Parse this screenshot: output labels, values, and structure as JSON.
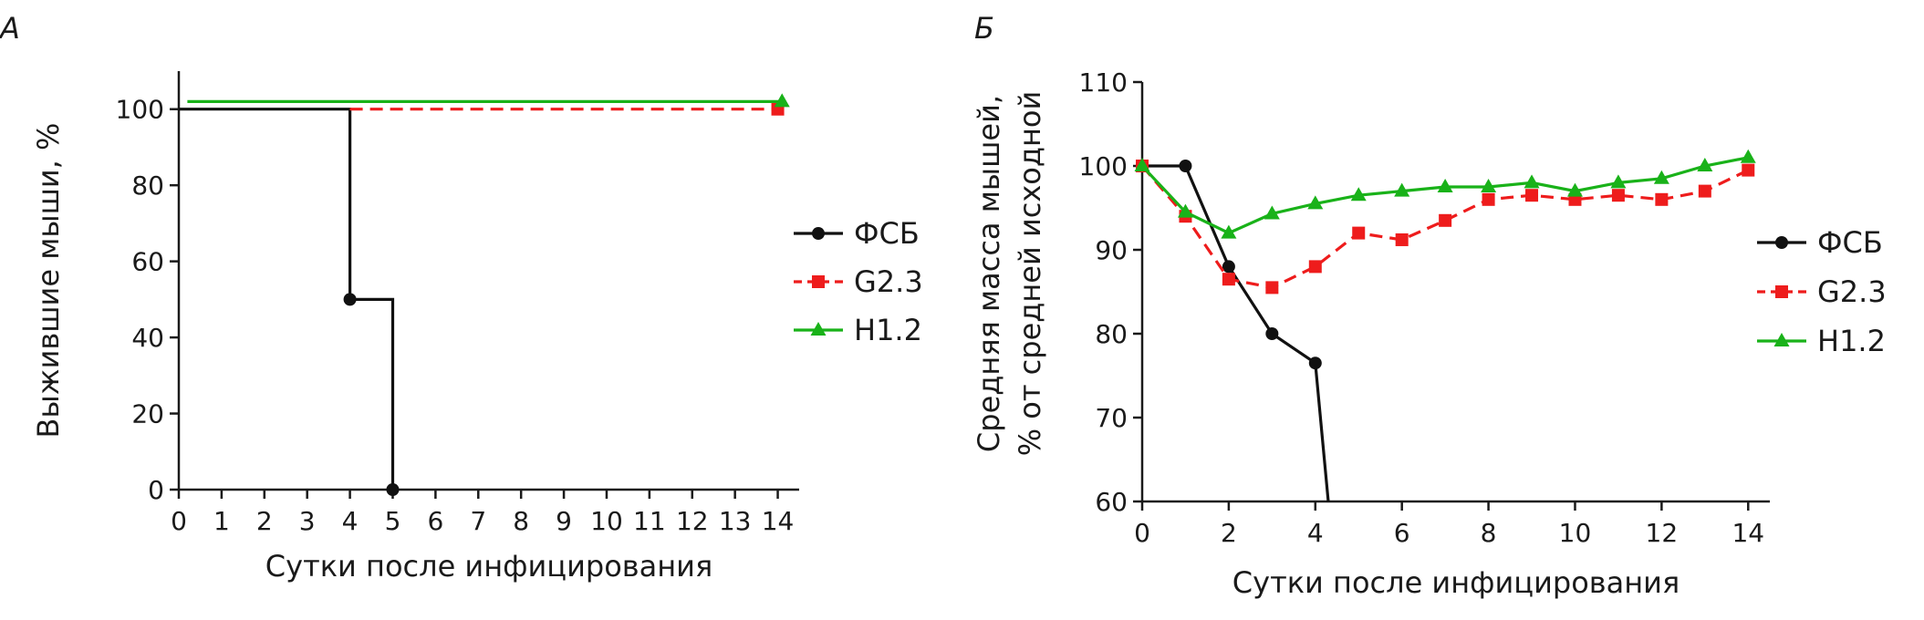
{
  "colors": {
    "pbs": "#111111",
    "g23": "#ee1c1c",
    "h12": "#19b219"
  },
  "chart_data": [
    {
      "panel": "А",
      "type": "line",
      "step": true,
      "title": "",
      "xlabel": "Сутки после инфицирования",
      "ylabel": "Выжившие мыши, %",
      "xlim": [
        0,
        14.5
      ],
      "ylim": [
        0,
        110
      ],
      "xticks": [
        0,
        1,
        2,
        3,
        4,
        5,
        6,
        7,
        8,
        9,
        10,
        11,
        12,
        13,
        14
      ],
      "xtick_labels": [
        "0",
        "1",
        "2",
        "3",
        "4",
        "5",
        "6",
        "7",
        "8",
        "9",
        "10",
        "11",
        "12",
        "13",
        "14"
      ],
      "yticks": [
        0,
        20,
        40,
        60,
        80,
        100
      ],
      "ytick_labels": [
        "0",
        "20",
        "40",
        "60",
        "80",
        "100"
      ],
      "legend_position": "right",
      "series": [
        {
          "name": "ФСБ",
          "color": "#111111",
          "marker": "circle",
          "dash": false,
          "step_points": [
            [
              0,
              100
            ],
            [
              4,
              100
            ],
            [
              4,
              50
            ],
            [
              5,
              50
            ],
            [
              5,
              0
            ]
          ],
          "markers": [
            [
              4,
              50
            ],
            [
              5,
              0
            ]
          ]
        },
        {
          "name": "G2.3",
          "color": "#ee1c1c",
          "marker": "square",
          "dash": true,
          "step_points": [
            [
              4,
              100
            ],
            [
              14,
              100
            ]
          ],
          "markers": [
            [
              14,
              100
            ]
          ]
        },
        {
          "name": "H1.2",
          "color": "#19b219",
          "marker": "triangle",
          "dash": false,
          "step_points": [
            [
              0.2,
              102
            ],
            [
              14.1,
              102
            ]
          ],
          "markers": [
            [
              14.1,
              102
            ]
          ]
        }
      ]
    },
    {
      "panel": "Б",
      "type": "line",
      "title": "",
      "xlabel": "Сутки после инфицирования",
      "ylabel_lines": [
        "Средняя масса мышей,",
        "% от средней исходной"
      ],
      "xlim": [
        0,
        14.5
      ],
      "ylim": [
        60,
        110
      ],
      "xticks": [
        0,
        2,
        4,
        6,
        8,
        10,
        12,
        14
      ],
      "xtick_labels": [
        "0",
        "2",
        "4",
        "6",
        "8",
        "10",
        "12",
        "14"
      ],
      "yticks": [
        60,
        70,
        80,
        90,
        100,
        110
      ],
      "ytick_labels": [
        "60",
        "70",
        "80",
        "90",
        "100",
        "110"
      ],
      "legend_position": "right",
      "series": [
        {
          "name": "ФСБ",
          "color": "#111111",
          "marker": "circle",
          "dash": false,
          "x": [
            0,
            1,
            2,
            3,
            4
          ],
          "y": [
            100,
            100,
            88,
            80,
            76.5
          ],
          "tail": [
            4.3,
            60
          ]
        },
        {
          "name": "G2.3",
          "color": "#ee1c1c",
          "marker": "square",
          "dash": true,
          "x": [
            0,
            1,
            2,
            3,
            4,
            5,
            6,
            7,
            8,
            9,
            10,
            11,
            12,
            13,
            14
          ],
          "y": [
            100,
            94,
            86.5,
            85.5,
            88,
            92,
            91.2,
            93.5,
            96,
            96.5,
            96,
            96.5,
            96,
            97,
            99.5
          ]
        },
        {
          "name": "H1.2",
          "color": "#19b219",
          "marker": "triangle",
          "dash": false,
          "x": [
            0,
            1,
            2,
            3,
            4,
            5,
            6,
            7,
            8,
            9,
            10,
            11,
            12,
            13,
            14
          ],
          "y": [
            100,
            94.5,
            92,
            94.3,
            95.5,
            96.5,
            97,
            97.5,
            97.5,
            98,
            97,
            98,
            98.5,
            100,
            101
          ]
        }
      ]
    }
  ]
}
